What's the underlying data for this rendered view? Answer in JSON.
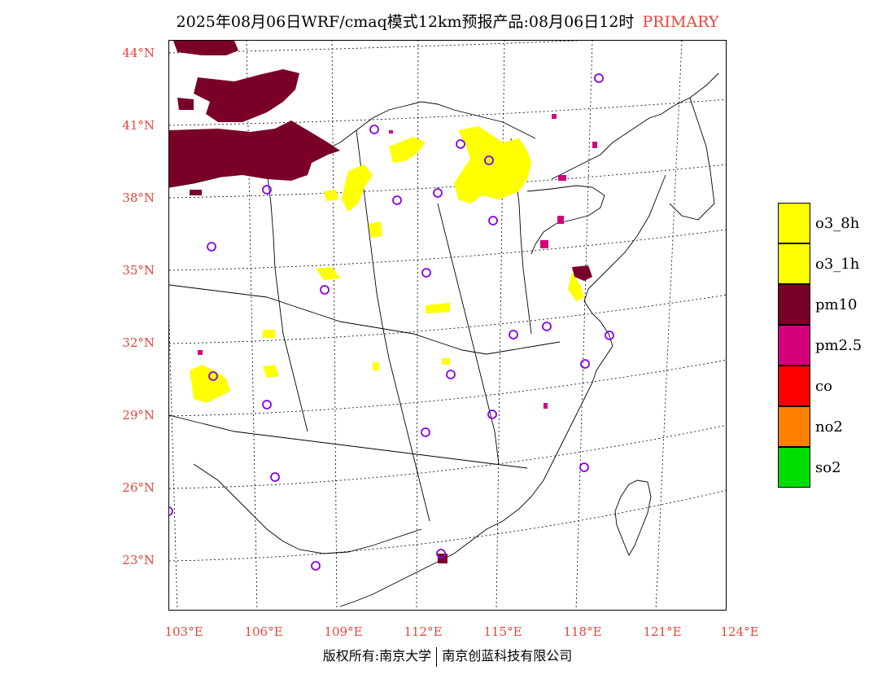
{
  "title": {
    "text": "2025年08月06日WRF/cmaq模式12km预报产品:08月06日12时",
    "tag": "PRIMARY"
  },
  "latitude_labels": [
    "44°N",
    "41°N",
    "38°N",
    "35°N",
    "32°N",
    "29°N",
    "26°N",
    "23°N"
  ],
  "longitude_labels": [
    "103°E",
    "106°E",
    "109°E",
    "112°E",
    "115°E",
    "118°E",
    "121°E",
    "124°E"
  ],
  "legend": [
    {
      "label": "o3_8h",
      "color": "#ffff00"
    },
    {
      "label": "o3_1h",
      "color": "#ffff00"
    },
    {
      "label": "pm10",
      "color": "#7a0028"
    },
    {
      "label": "pm2.5",
      "color": "#d4007a"
    },
    {
      "label": "co",
      "color": "#ff0000"
    },
    {
      "label": "no2",
      "color": "#ff8000"
    },
    {
      "label": "so2",
      "color": "#00dd00"
    }
  ],
  "copyright": {
    "left": "版权所有:南京大学",
    "right": "南京创蓝科技有限公司"
  },
  "colors": {
    "label_red": "#e8443a",
    "station_marker": "#8a00e6"
  }
}
